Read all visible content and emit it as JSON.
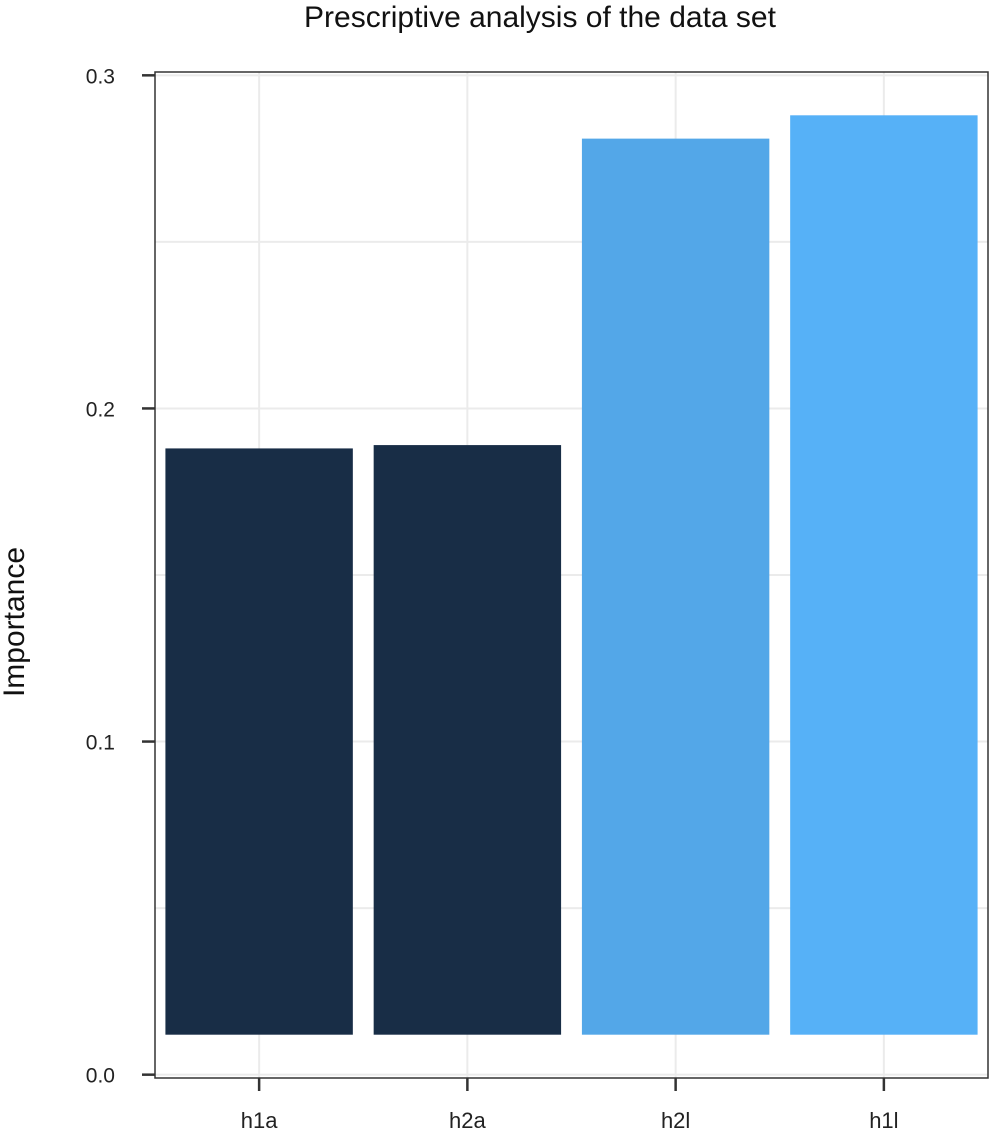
{
  "chart_data": {
    "type": "bar",
    "title": "Prescriptive analysis of the data set",
    "xlabel": "",
    "ylabel": "Importance",
    "categories": [
      "h1a",
      "h2a",
      "h2l",
      "h1l"
    ],
    "values": [
      0.188,
      0.189,
      0.281,
      0.288
    ],
    "bar_base": 0.012,
    "colors": [
      "#182d46",
      "#182d46",
      "#53a7e8",
      "#56b1f7"
    ],
    "ylim": [
      -0.001,
      0.301
    ],
    "yticks": [
      0.0,
      0.1,
      0.2,
      0.3
    ],
    "ytick_labels": [
      "0.0",
      "0.1",
      "0.2",
      "0.3"
    ],
    "grid": true
  }
}
